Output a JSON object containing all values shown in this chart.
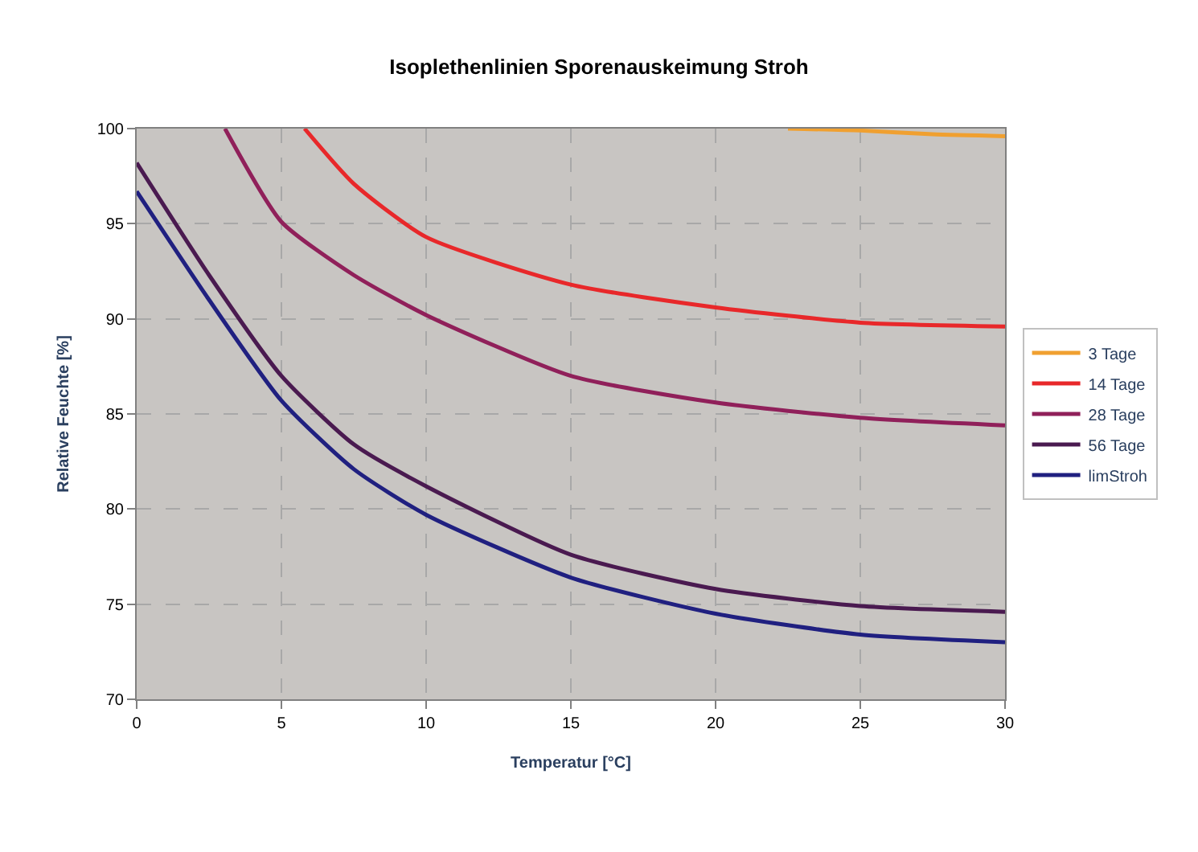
{
  "chart_data": {
    "type": "line",
    "title": "Isoplethenlinien Sporenauskeimung Stroh",
    "xlabel": "Temperatur [°C]",
    "ylabel": "Relative Feuchte [%]",
    "xlim": [
      0,
      30
    ],
    "xticks": [
      0,
      5,
      10,
      15,
      20,
      25,
      30
    ],
    "ylim": [
      70,
      100
    ],
    "yticks": [
      70,
      75,
      80,
      85,
      90,
      95,
      100
    ],
    "grid": true,
    "legend": "right",
    "marker": "none",
    "line_style": "solid",
    "series": [
      {
        "name": "3 Tage",
        "color": "#f0a030",
        "x": [
          22.5,
          25,
          27.5,
          30
        ],
        "values": [
          100,
          99.9,
          99.7,
          99.6
        ]
      },
      {
        "name": "14 Tage",
        "color": "#e8282a",
        "x": [
          5.8,
          7.5,
          10,
          15,
          20,
          25,
          30
        ],
        "values": [
          100,
          97.1,
          94.3,
          91.8,
          90.6,
          89.8,
          89.6
        ]
      },
      {
        "name": "28 Tage",
        "color": "#90205a",
        "x": [
          3.05,
          5,
          7.5,
          10,
          15,
          20,
          25,
          30
        ],
        "values": [
          100,
          95.1,
          92.3,
          90.2,
          87.0,
          85.6,
          84.8,
          84.4
        ]
      },
      {
        "name": "56 Tage",
        "color": "#4a1a50",
        "x": [
          0,
          2.5,
          5,
          7.5,
          10,
          15,
          20,
          25,
          30
        ],
        "values": [
          98.2,
          92.3,
          87.0,
          83.4,
          81.2,
          77.6,
          75.8,
          74.9,
          74.6
        ]
      },
      {
        "name": "limStroh",
        "color": "#202080",
        "x": [
          0,
          2.5,
          5,
          7.5,
          10,
          15,
          20,
          25,
          30
        ],
        "values": [
          96.7,
          91.0,
          85.7,
          82.1,
          79.7,
          76.4,
          74.5,
          73.4,
          73.0
        ]
      }
    ]
  }
}
